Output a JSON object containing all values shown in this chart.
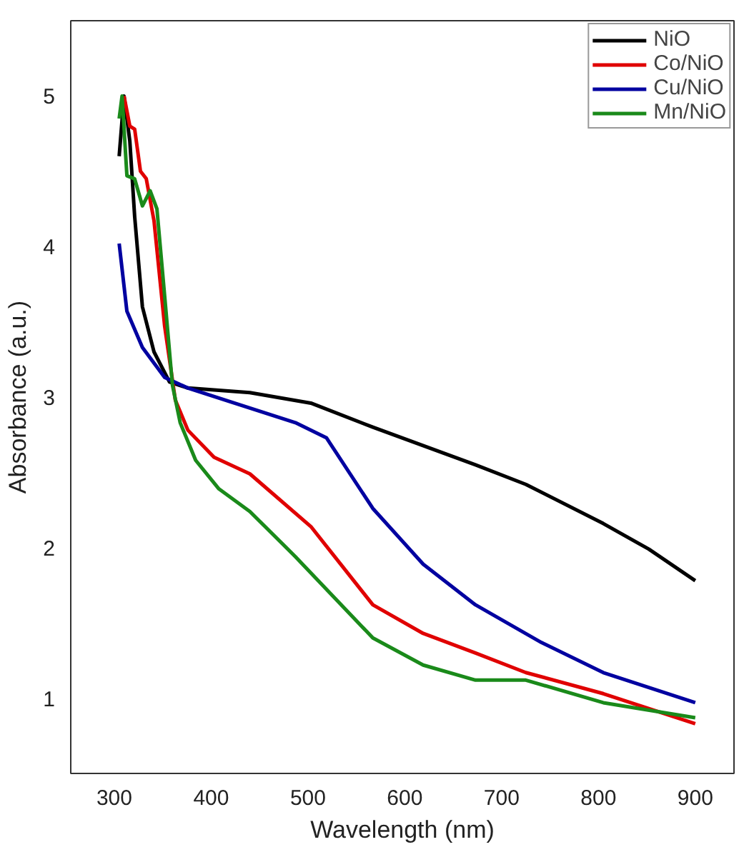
{
  "chart_data": {
    "type": "line",
    "xlabel": "Wavelength (nm)",
    "ylabel": "Absorbance (a.u.)",
    "xlim": [
      255,
      940
    ],
    "ylim": [
      0.5,
      5.5
    ],
    "xticks": [
      300,
      400,
      500,
      600,
      700,
      800,
      900
    ],
    "yticks": [
      1,
      2,
      3,
      4,
      5
    ],
    "grid": false,
    "legend": "top right",
    "marker": "none",
    "line_style": "solid",
    "series": [
      {
        "name": "NiO",
        "color": "#000000",
        "x": [
          305,
          310,
          316,
          321,
          329,
          341,
          357,
          376,
          440,
          503,
          567,
          673,
          725,
          805,
          852,
          900
        ],
        "values": [
          4.6,
          5.0,
          4.7,
          4.2,
          3.6,
          3.3,
          3.1,
          3.06,
          3.03,
          2.96,
          2.8,
          2.55,
          2.42,
          2.16,
          1.99,
          1.78
        ]
      },
      {
        "name": "Co/NiO",
        "color": "#e00000",
        "x": [
          310,
          316,
          321,
          327,
          333,
          341,
          352,
          363,
          376,
          403,
          440,
          503,
          567,
          619,
          673,
          725,
          805,
          900
        ],
        "values": [
          5.0,
          4.8,
          4.78,
          4.5,
          4.45,
          4.17,
          3.47,
          2.98,
          2.78,
          2.6,
          2.49,
          2.14,
          1.62,
          1.43,
          1.3,
          1.17,
          1.03,
          0.83
        ]
      },
      {
        "name": "Cu/NiO",
        "color": "#0000a0",
        "x": [
          305,
          313,
          329,
          352,
          376,
          424,
          487,
          519,
          567,
          619,
          673,
          741,
          805,
          900
        ],
        "values": [
          4.02,
          3.57,
          3.33,
          3.13,
          3.06,
          2.96,
          2.83,
          2.73,
          2.26,
          1.89,
          1.62,
          1.37,
          1.17,
          0.97
        ]
      },
      {
        "name": "Mn/NiO",
        "color": "#1a8a1a",
        "x": [
          305,
          308,
          313,
          321,
          329,
          337,
          344,
          352,
          360,
          368,
          384,
          408,
          440,
          487,
          567,
          619,
          673,
          725,
          805,
          900
        ],
        "values": [
          4.85,
          5.0,
          4.47,
          4.45,
          4.27,
          4.37,
          4.25,
          3.67,
          3.08,
          2.83,
          2.58,
          2.39,
          2.24,
          1.94,
          1.4,
          1.22,
          1.12,
          1.12,
          0.97,
          0.87
        ]
      }
    ]
  }
}
